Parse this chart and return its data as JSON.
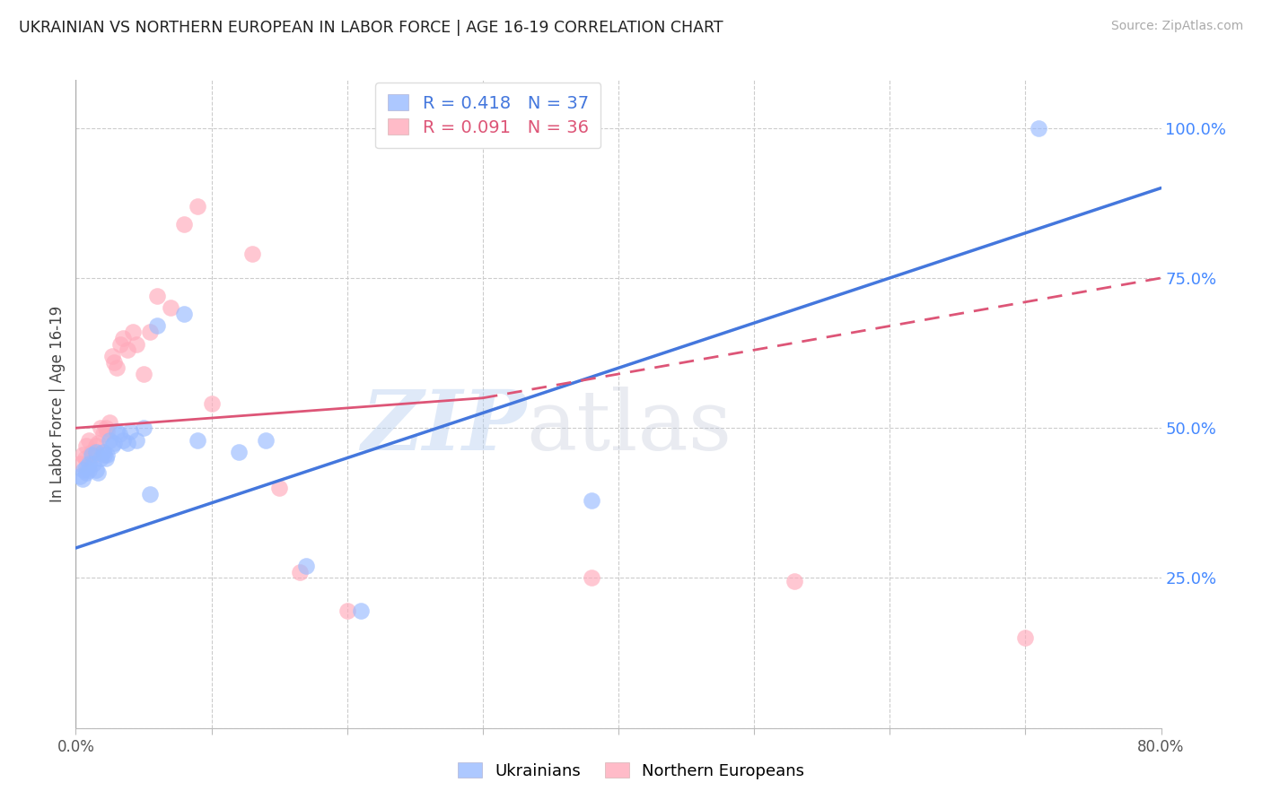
{
  "title": "UKRAINIAN VS NORTHERN EUROPEAN IN LABOR FORCE | AGE 16-19 CORRELATION CHART",
  "source": "Source: ZipAtlas.com",
  "ylabel": "In Labor Force | Age 16-19",
  "xlim": [
    0.0,
    0.8
  ],
  "ylim": [
    0.0,
    1.08
  ],
  "background_color": "#ffffff",
  "grid_color": "#cccccc",
  "blue_color": "#99bbff",
  "pink_color": "#ffaabb",
  "blue_line_color": "#4477dd",
  "pink_line_color": "#dd5577",
  "R_blue": 0.418,
  "N_blue": 37,
  "R_pink": 0.091,
  "N_pink": 36,
  "legend_labels_bottom": [
    "Ukrainians",
    "Northern Europeans"
  ],
  "right_ytick_vals": [
    0.0,
    0.25,
    0.5,
    0.75,
    1.0
  ],
  "right_ytick_labels": [
    "",
    "25.0%",
    "50.0%",
    "75.0%",
    "100.0%"
  ],
  "right_ytick_color": "#4488ff",
  "blue_x": [
    0.003,
    0.005,
    0.006,
    0.008,
    0.008,
    0.01,
    0.01,
    0.012,
    0.013,
    0.015,
    0.015,
    0.016,
    0.018,
    0.02,
    0.021,
    0.022,
    0.023,
    0.025,
    0.027,
    0.028,
    0.03,
    0.032,
    0.035,
    0.038,
    0.04,
    0.045,
    0.05,
    0.055,
    0.06,
    0.08,
    0.09,
    0.12,
    0.14,
    0.17,
    0.21,
    0.38,
    0.71
  ],
  "blue_y": [
    0.42,
    0.415,
    0.43,
    0.435,
    0.425,
    0.44,
    0.43,
    0.455,
    0.44,
    0.46,
    0.43,
    0.425,
    0.45,
    0.46,
    0.455,
    0.45,
    0.455,
    0.48,
    0.47,
    0.475,
    0.495,
    0.49,
    0.48,
    0.475,
    0.495,
    0.48,
    0.5,
    0.39,
    0.67,
    0.69,
    0.48,
    0.46,
    0.48,
    0.27,
    0.195,
    0.38,
    1.0
  ],
  "pink_x": [
    0.003,
    0.005,
    0.007,
    0.008,
    0.01,
    0.012,
    0.013,
    0.015,
    0.016,
    0.018,
    0.02,
    0.022,
    0.023,
    0.025,
    0.027,
    0.028,
    0.03,
    0.033,
    0.035,
    0.038,
    0.042,
    0.045,
    0.05,
    0.055,
    0.06,
    0.07,
    0.08,
    0.09,
    0.1,
    0.13,
    0.15,
    0.165,
    0.2,
    0.38,
    0.53,
    0.7
  ],
  "pink_y": [
    0.44,
    0.455,
    0.45,
    0.47,
    0.48,
    0.46,
    0.455,
    0.47,
    0.475,
    0.5,
    0.49,
    0.5,
    0.495,
    0.51,
    0.62,
    0.61,
    0.6,
    0.64,
    0.65,
    0.63,
    0.66,
    0.64,
    0.59,
    0.66,
    0.72,
    0.7,
    0.84,
    0.87,
    0.54,
    0.79,
    0.4,
    0.26,
    0.195,
    0.25,
    0.245,
    0.15
  ],
  "blue_line_x": [
    0.0,
    0.8
  ],
  "blue_line_y": [
    0.3,
    0.9
  ],
  "pink_line_x": [
    0.0,
    0.3,
    0.8
  ],
  "pink_line_y": [
    0.5,
    0.55,
    0.75
  ]
}
